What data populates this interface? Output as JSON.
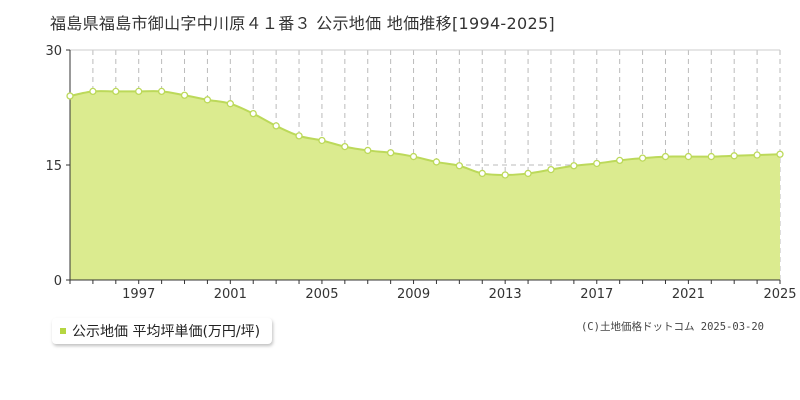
{
  "chart_data": {
    "type": "area",
    "title": "福島県福島市御山字中川原４１番３ 公示地価 地価推移[1994-2025]",
    "xlabel": "",
    "ylabel": "",
    "ylim": [
      0,
      30
    ],
    "yticks": [
      0,
      15,
      30
    ],
    "xlim": [
      1994,
      2025
    ],
    "xticks": [
      1997,
      2001,
      2005,
      2009,
      2013,
      2017,
      2021,
      2025
    ],
    "grid": true,
    "legend_position": "bottom-left",
    "colors": {
      "fill": "#dbeb8f",
      "line": "#bcd95a",
      "marker_fill": "#ffffff",
      "marker_stroke": "#bcd95a",
      "grid": "#bbbbbb"
    },
    "series": [
      {
        "name": "公示地価 平均坪単価(万円/坪)",
        "x": [
          1994,
          1995,
          1996,
          1997,
          1998,
          1999,
          2000,
          2001,
          2002,
          2003,
          2004,
          2005,
          2006,
          2007,
          2008,
          2009,
          2010,
          2011,
          2012,
          2013,
          2014,
          2015,
          2016,
          2017,
          2018,
          2019,
          2020,
          2021,
          2022,
          2023,
          2024,
          2025
        ],
        "values": [
          24.0,
          24.6,
          24.6,
          24.6,
          24.6,
          24.1,
          23.5,
          23.0,
          21.7,
          20.1,
          18.8,
          18.2,
          17.4,
          16.9,
          16.6,
          16.1,
          15.4,
          14.9,
          13.9,
          13.7,
          13.9,
          14.4,
          14.9,
          15.2,
          15.6,
          15.9,
          16.1,
          16.1,
          16.1,
          16.2,
          16.3,
          16.4
        ]
      }
    ]
  },
  "legend": {
    "label": "公示地価 平均坪単価(万円/坪)"
  },
  "credit": "(C)土地価格ドットコム 2025-03-20"
}
